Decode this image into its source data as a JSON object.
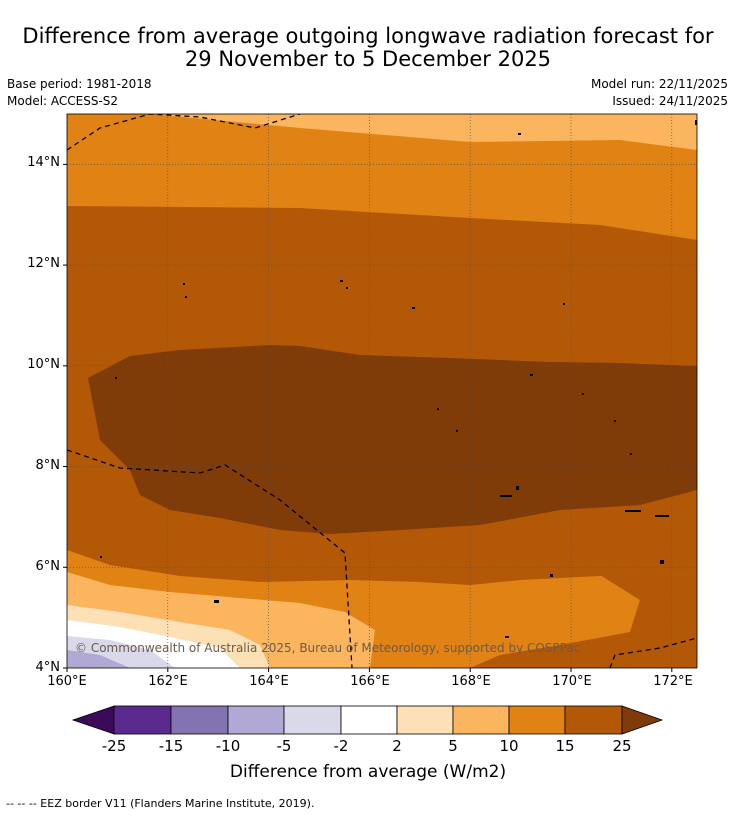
{
  "title": {
    "line1": "Difference from average outgoing longwave radiation forecast for",
    "line2": "29 November to 5 December 2025"
  },
  "meta": {
    "base_period": "Base period: 1981-2018",
    "model": "Model: ACCESS-S2",
    "model_run": "Model run: 22/11/2025",
    "issued": "Issued: 24/11/2025"
  },
  "map": {
    "latitude_labels": [
      "14°N",
      "12°N",
      "10°N",
      "8°N",
      "6°N",
      "4°N"
    ],
    "longitude_labels": [
      "160°E",
      "162°E",
      "164°E",
      "166°E",
      "168°E",
      "170°E",
      "172°E"
    ],
    "lon_range": [
      160,
      172.5
    ],
    "lat_range": [
      4,
      15
    ],
    "copyright": "© Commonwealth of Australia 2025, Bureau of Meteorology, supported by COSPPac"
  },
  "colorbar": {
    "tick_labels": [
      "-25",
      "-15",
      "-10",
      "-5",
      "-2",
      "2",
      "5",
      "10",
      "15",
      "25"
    ],
    "colors": {
      "lt_-25": "#3b0a59",
      "-25_-15": "#5a2a8e",
      "-15_-10": "#8473b2",
      "-10_-5": "#b1a8d3",
      "-5_-2": "#d9d9ea",
      "-2_2": "#ffffff",
      "2_5": "#fde0b6",
      "5_10": "#fbb55f",
      "10_15": "#e08214",
      "15_25": "#b35806",
      "gt_25": "#7f3b08"
    },
    "title": "Difference from average (W/m2)"
  },
  "footnote": "--  --  -- EEZ border V11 (Flanders Marine Institute, 2019)."
}
